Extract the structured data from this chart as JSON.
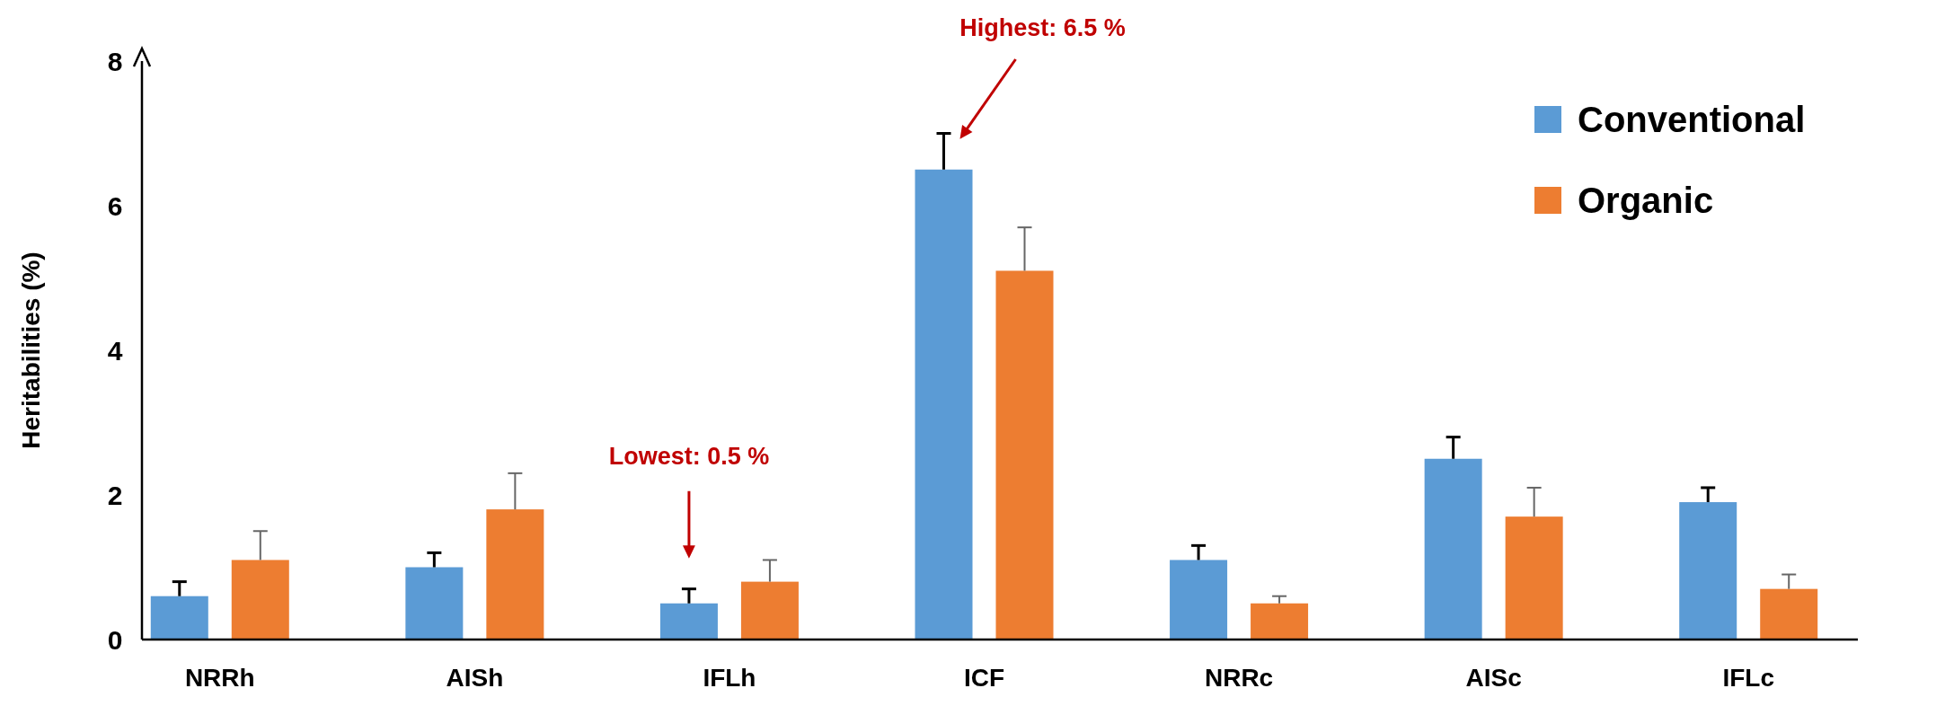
{
  "chart_data": {
    "type": "bar",
    "ylabel": "Heritabilities (%)",
    "categories": [
      "NRRh",
      "AISh",
      "IFLh",
      "ICF",
      "NRRc",
      "AISc",
      "IFLc"
    ],
    "series": [
      {
        "name": "Conventional",
        "color": "#5b9bd5",
        "values": [
          0.6,
          1.0,
          0.5,
          6.5,
          1.1,
          2.5,
          1.9
        ],
        "errors": [
          [
            0.6,
            0.8
          ],
          [
            1.0,
            1.2
          ],
          [
            0.5,
            0.7
          ],
          [
            6.5,
            7.0
          ],
          [
            1.1,
            1.3
          ],
          [
            2.5,
            2.8
          ],
          [
            1.9,
            2.1
          ]
        ]
      },
      {
        "name": "Organic",
        "color": "#ed7d31",
        "values": [
          1.1,
          1.8,
          0.8,
          5.1,
          0.5,
          1.7,
          0.7
        ],
        "errors": [
          [
            1.1,
            1.5
          ],
          [
            1.8,
            2.3
          ],
          [
            0.8,
            1.1
          ],
          [
            5.1,
            5.7
          ],
          [
            0.5,
            0.6
          ],
          [
            1.7,
            2.1
          ],
          [
            0.7,
            0.9
          ]
        ]
      }
    ],
    "ylim": [
      0,
      8
    ],
    "yticks": [
      0,
      2,
      4,
      6,
      8
    ],
    "grid": false,
    "legend": "top right",
    "annotations": [
      "Highest: 6.5 %",
      "Lowest: 0.5 %"
    ]
  }
}
